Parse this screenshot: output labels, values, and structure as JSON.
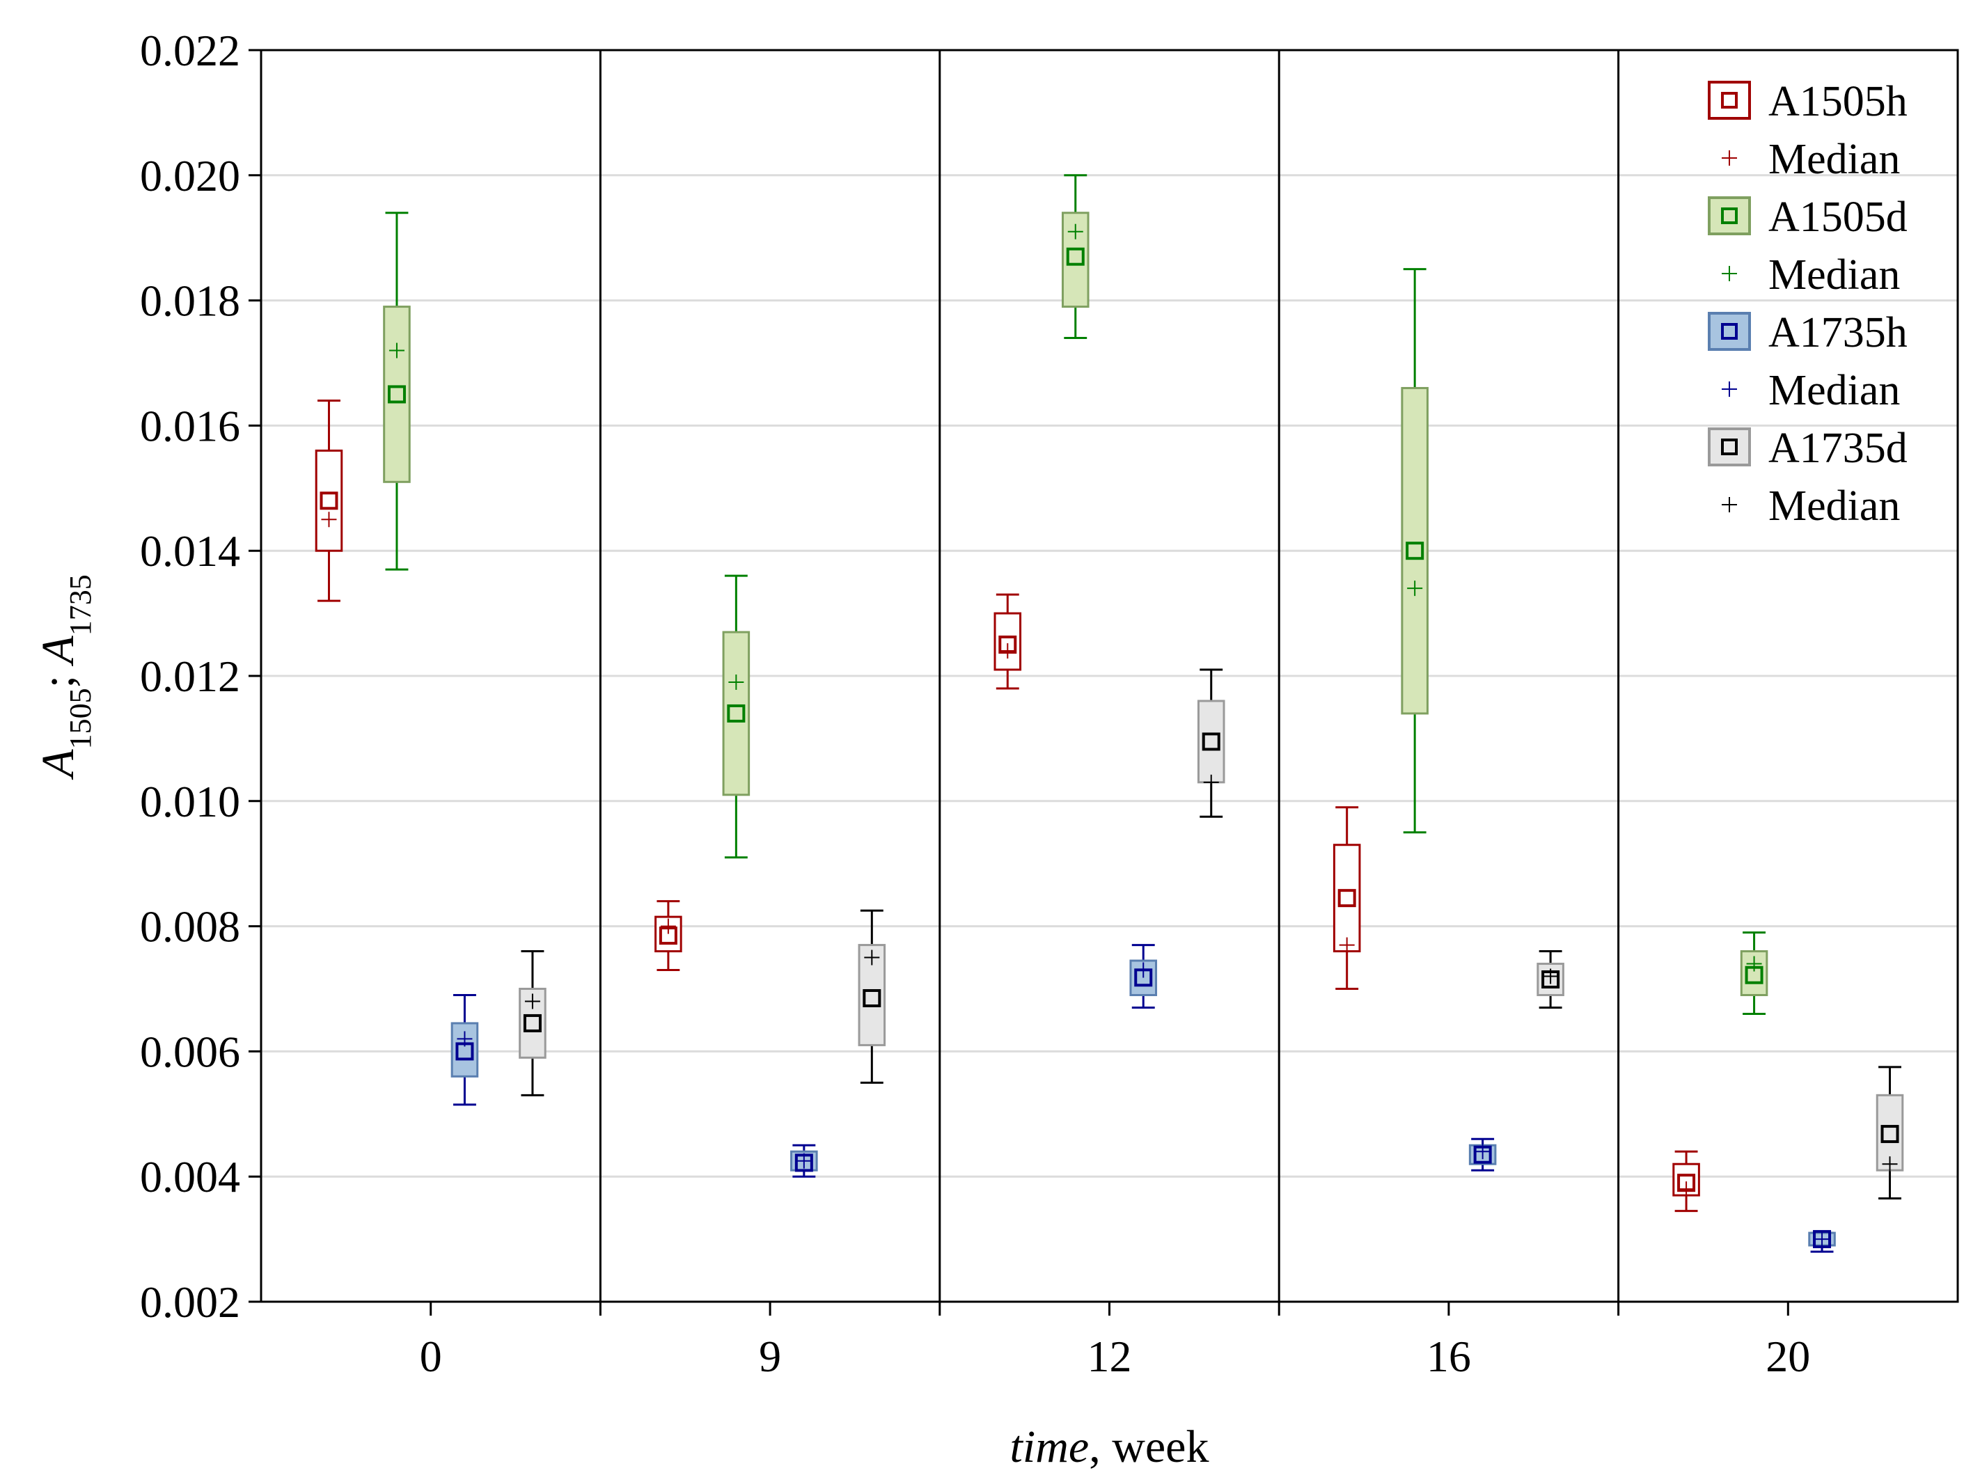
{
  "chart_data": {
    "type": "box",
    "xlabel_italic": "time",
    "xlabel_rest": ", week",
    "ylabel_parts": {
      "a": "A",
      "sub1": "1505",
      "sep": "; ",
      "b": "A",
      "sub2": "1735"
    },
    "ylim": [
      0.002,
      0.022
    ],
    "yticks": [
      0.002,
      0.004,
      0.006,
      0.008,
      0.01,
      0.012,
      0.014,
      0.016,
      0.018,
      0.02,
      0.022
    ],
    "ytick_labels": [
      "0.002",
      "0.004",
      "0.006",
      "0.008",
      "0.010",
      "0.012",
      "0.014",
      "0.016",
      "0.018",
      "0.020",
      "0.022"
    ],
    "grid": "horizontal",
    "legend_position": "top-right",
    "categories": [
      "0",
      "9",
      "12",
      "16",
      "20"
    ],
    "series": [
      {
        "name": "A1505h",
        "median_label": "Median",
        "color": "#a00000",
        "fill": "#ffffff",
        "boxes": [
          {
            "mean": 0.0148,
            "median": 0.0145,
            "q1": 0.014,
            "q3": 0.0156,
            "min": 0.0132,
            "max": 0.0164
          },
          {
            "mean": 0.00785,
            "median": 0.008,
            "q1": 0.0076,
            "q3": 0.00815,
            "min": 0.0073,
            "max": 0.0084
          },
          {
            "mean": 0.0125,
            "median": 0.0124,
            "q1": 0.0121,
            "q3": 0.013,
            "min": 0.0118,
            "max": 0.0133
          },
          {
            "mean": 0.00845,
            "median": 0.0077,
            "q1": 0.0076,
            "q3": 0.0093,
            "min": 0.007,
            "max": 0.0099
          },
          {
            "mean": 0.0039,
            "median": 0.0038,
            "q1": 0.0037,
            "q3": 0.0042,
            "min": 0.00345,
            "max": 0.0044
          }
        ]
      },
      {
        "name": "A1505d",
        "median_label": "Median",
        "color": "#008000",
        "fill": "#d6e6b8",
        "boxes": [
          {
            "mean": 0.0165,
            "median": 0.0172,
            "q1": 0.0151,
            "q3": 0.0179,
            "min": 0.0137,
            "max": 0.0194
          },
          {
            "mean": 0.0114,
            "median": 0.0119,
            "q1": 0.0101,
            "q3": 0.0127,
            "min": 0.0091,
            "max": 0.0136
          },
          {
            "mean": 0.0187,
            "median": 0.0191,
            "q1": 0.0179,
            "q3": 0.0194,
            "min": 0.0174,
            "max": 0.02
          },
          {
            "mean": 0.014,
            "median": 0.0134,
            "q1": 0.0114,
            "q3": 0.0166,
            "min": 0.0095,
            "max": 0.0185
          },
          {
            "mean": 0.00722,
            "median": 0.0074,
            "q1": 0.0069,
            "q3": 0.0076,
            "min": 0.0066,
            "max": 0.0079
          }
        ]
      },
      {
        "name": "A1735h",
        "median_label": "Median",
        "color": "#000090",
        "fill": "#a8c4e0",
        "boxes": [
          {
            "mean": 0.006,
            "median": 0.0062,
            "q1": 0.0056,
            "q3": 0.00645,
            "min": 0.00515,
            "max": 0.0069
          },
          {
            "mean": 0.00422,
            "median": 0.00425,
            "q1": 0.0041,
            "q3": 0.0044,
            "min": 0.004,
            "max": 0.0045
          },
          {
            "mean": 0.00718,
            "median": 0.0073,
            "q1": 0.0069,
            "q3": 0.00745,
            "min": 0.0067,
            "max": 0.0077
          },
          {
            "mean": 0.00435,
            "median": 0.0044,
            "q1": 0.0042,
            "q3": 0.0045,
            "min": 0.0041,
            "max": 0.0046
          },
          {
            "mean": 0.003,
            "median": 0.003,
            "q1": 0.0029,
            "q3": 0.0031,
            "min": 0.0028,
            "max": 0.0031
          }
        ]
      },
      {
        "name": "A1735d",
        "median_label": "Median",
        "color": "#000000",
        "fill": "#e6e6e6",
        "boxes": [
          {
            "mean": 0.00645,
            "median": 0.0068,
            "q1": 0.0059,
            "q3": 0.007,
            "min": 0.0053,
            "max": 0.0076
          },
          {
            "mean": 0.00685,
            "median": 0.0075,
            "q1": 0.0061,
            "q3": 0.0077,
            "min": 0.0055,
            "max": 0.00825
          },
          {
            "mean": 0.01095,
            "median": 0.0103,
            "q1": 0.0103,
            "q3": 0.0116,
            "min": 0.00975,
            "max": 0.0121
          },
          {
            "mean": 0.00715,
            "median": 0.0072,
            "q1": 0.0069,
            "q3": 0.0074,
            "min": 0.0067,
            "max": 0.0076
          },
          {
            "mean": 0.00468,
            "median": 0.0042,
            "q1": 0.0041,
            "q3": 0.0053,
            "min": 0.00365,
            "max": 0.00575
          }
        ]
      }
    ]
  }
}
